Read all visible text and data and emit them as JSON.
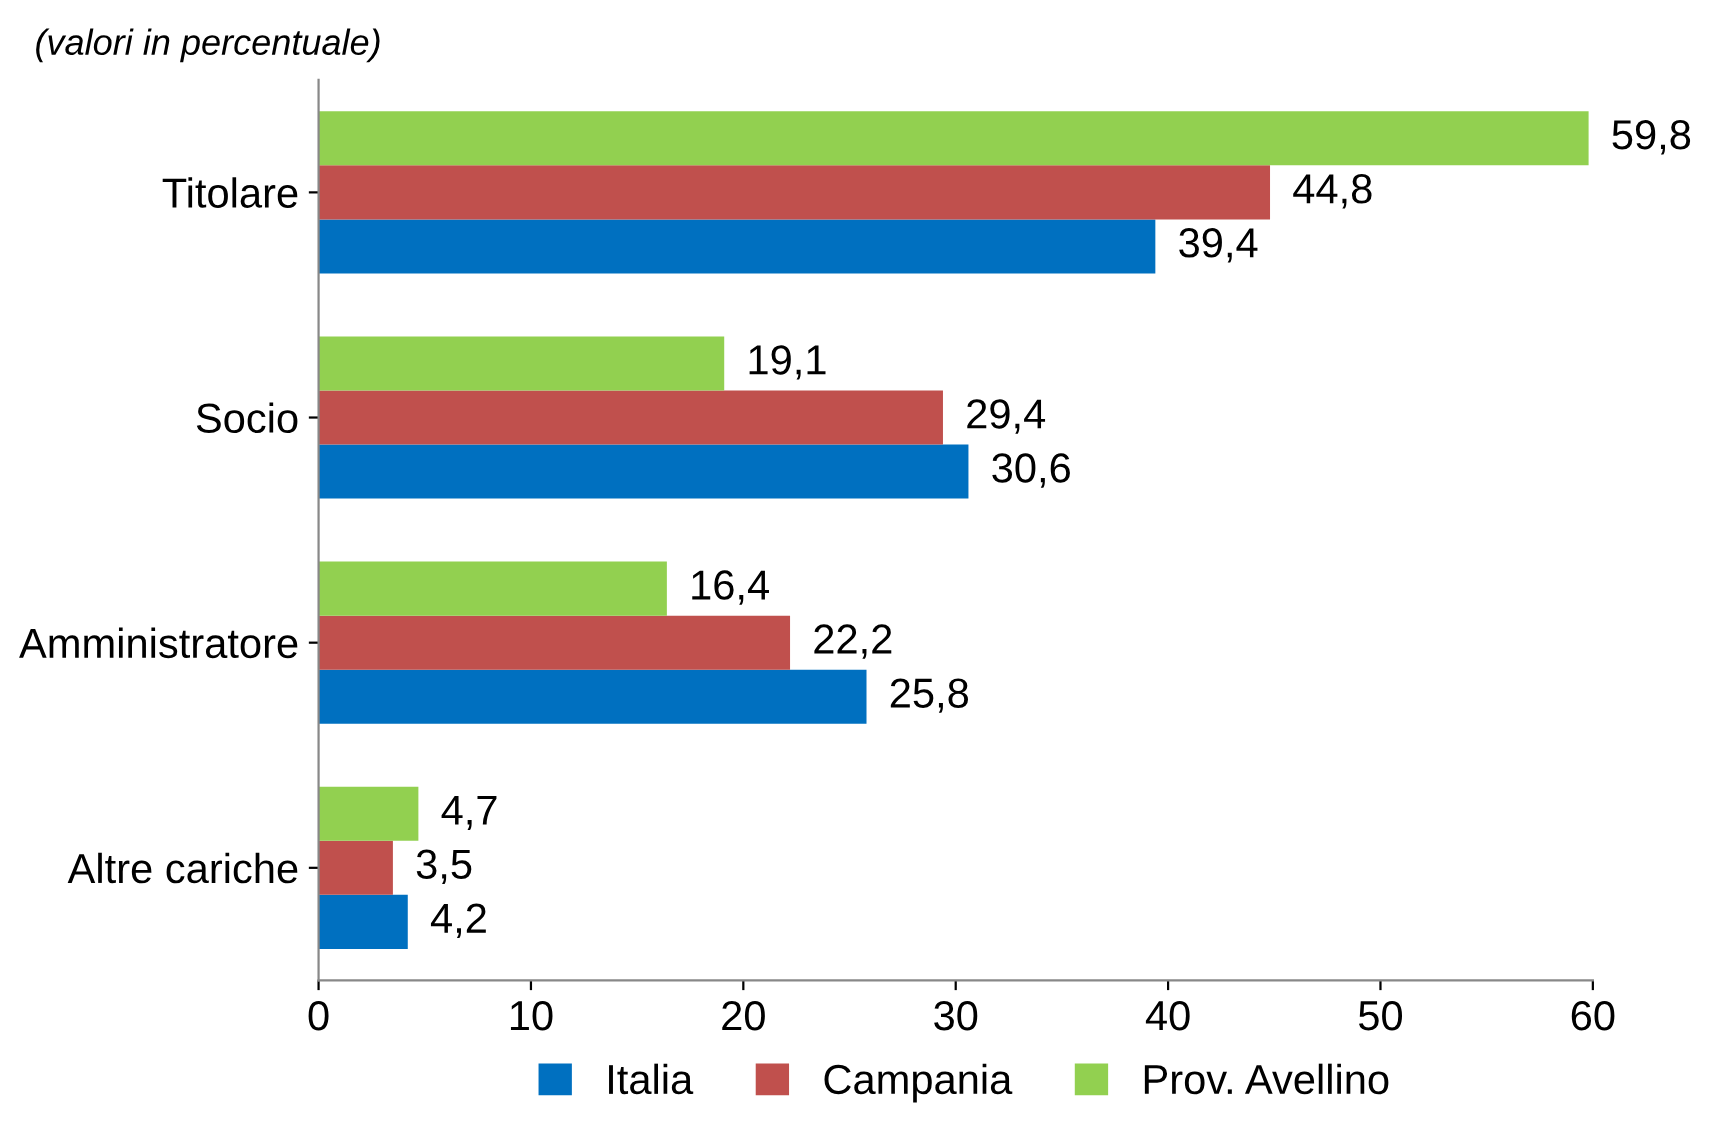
{
  "chart_data": {
    "type": "bar",
    "orientation": "horizontal",
    "subtitle": "(valori in percentuale)",
    "categories": [
      "Titolare",
      "Socio",
      "Amministratore",
      "Altre cariche"
    ],
    "series": [
      {
        "name": "Italia",
        "color": "#0070c0",
        "values": [
          39.4,
          30.6,
          25.8,
          4.2
        ],
        "value_labels": [
          "39,4",
          "30,6",
          "25,8",
          "4,2"
        ]
      },
      {
        "name": "Campania",
        "color": "#c0504d",
        "values": [
          44.8,
          29.4,
          22.2,
          3.5
        ],
        "value_labels": [
          "44,8",
          "29,4",
          "22,2",
          "3,5"
        ]
      },
      {
        "name": "Prov. Avellino",
        "color": "#92d050",
        "values": [
          59.8,
          19.1,
          16.4,
          4.7
        ],
        "value_labels": [
          "59,8",
          "19,1",
          "16,4",
          "4,7"
        ]
      }
    ],
    "xlim": [
      0,
      60
    ],
    "xticks": [
      0,
      10,
      20,
      30,
      40,
      50,
      60
    ],
    "grid": false,
    "legend": "bottom"
  }
}
